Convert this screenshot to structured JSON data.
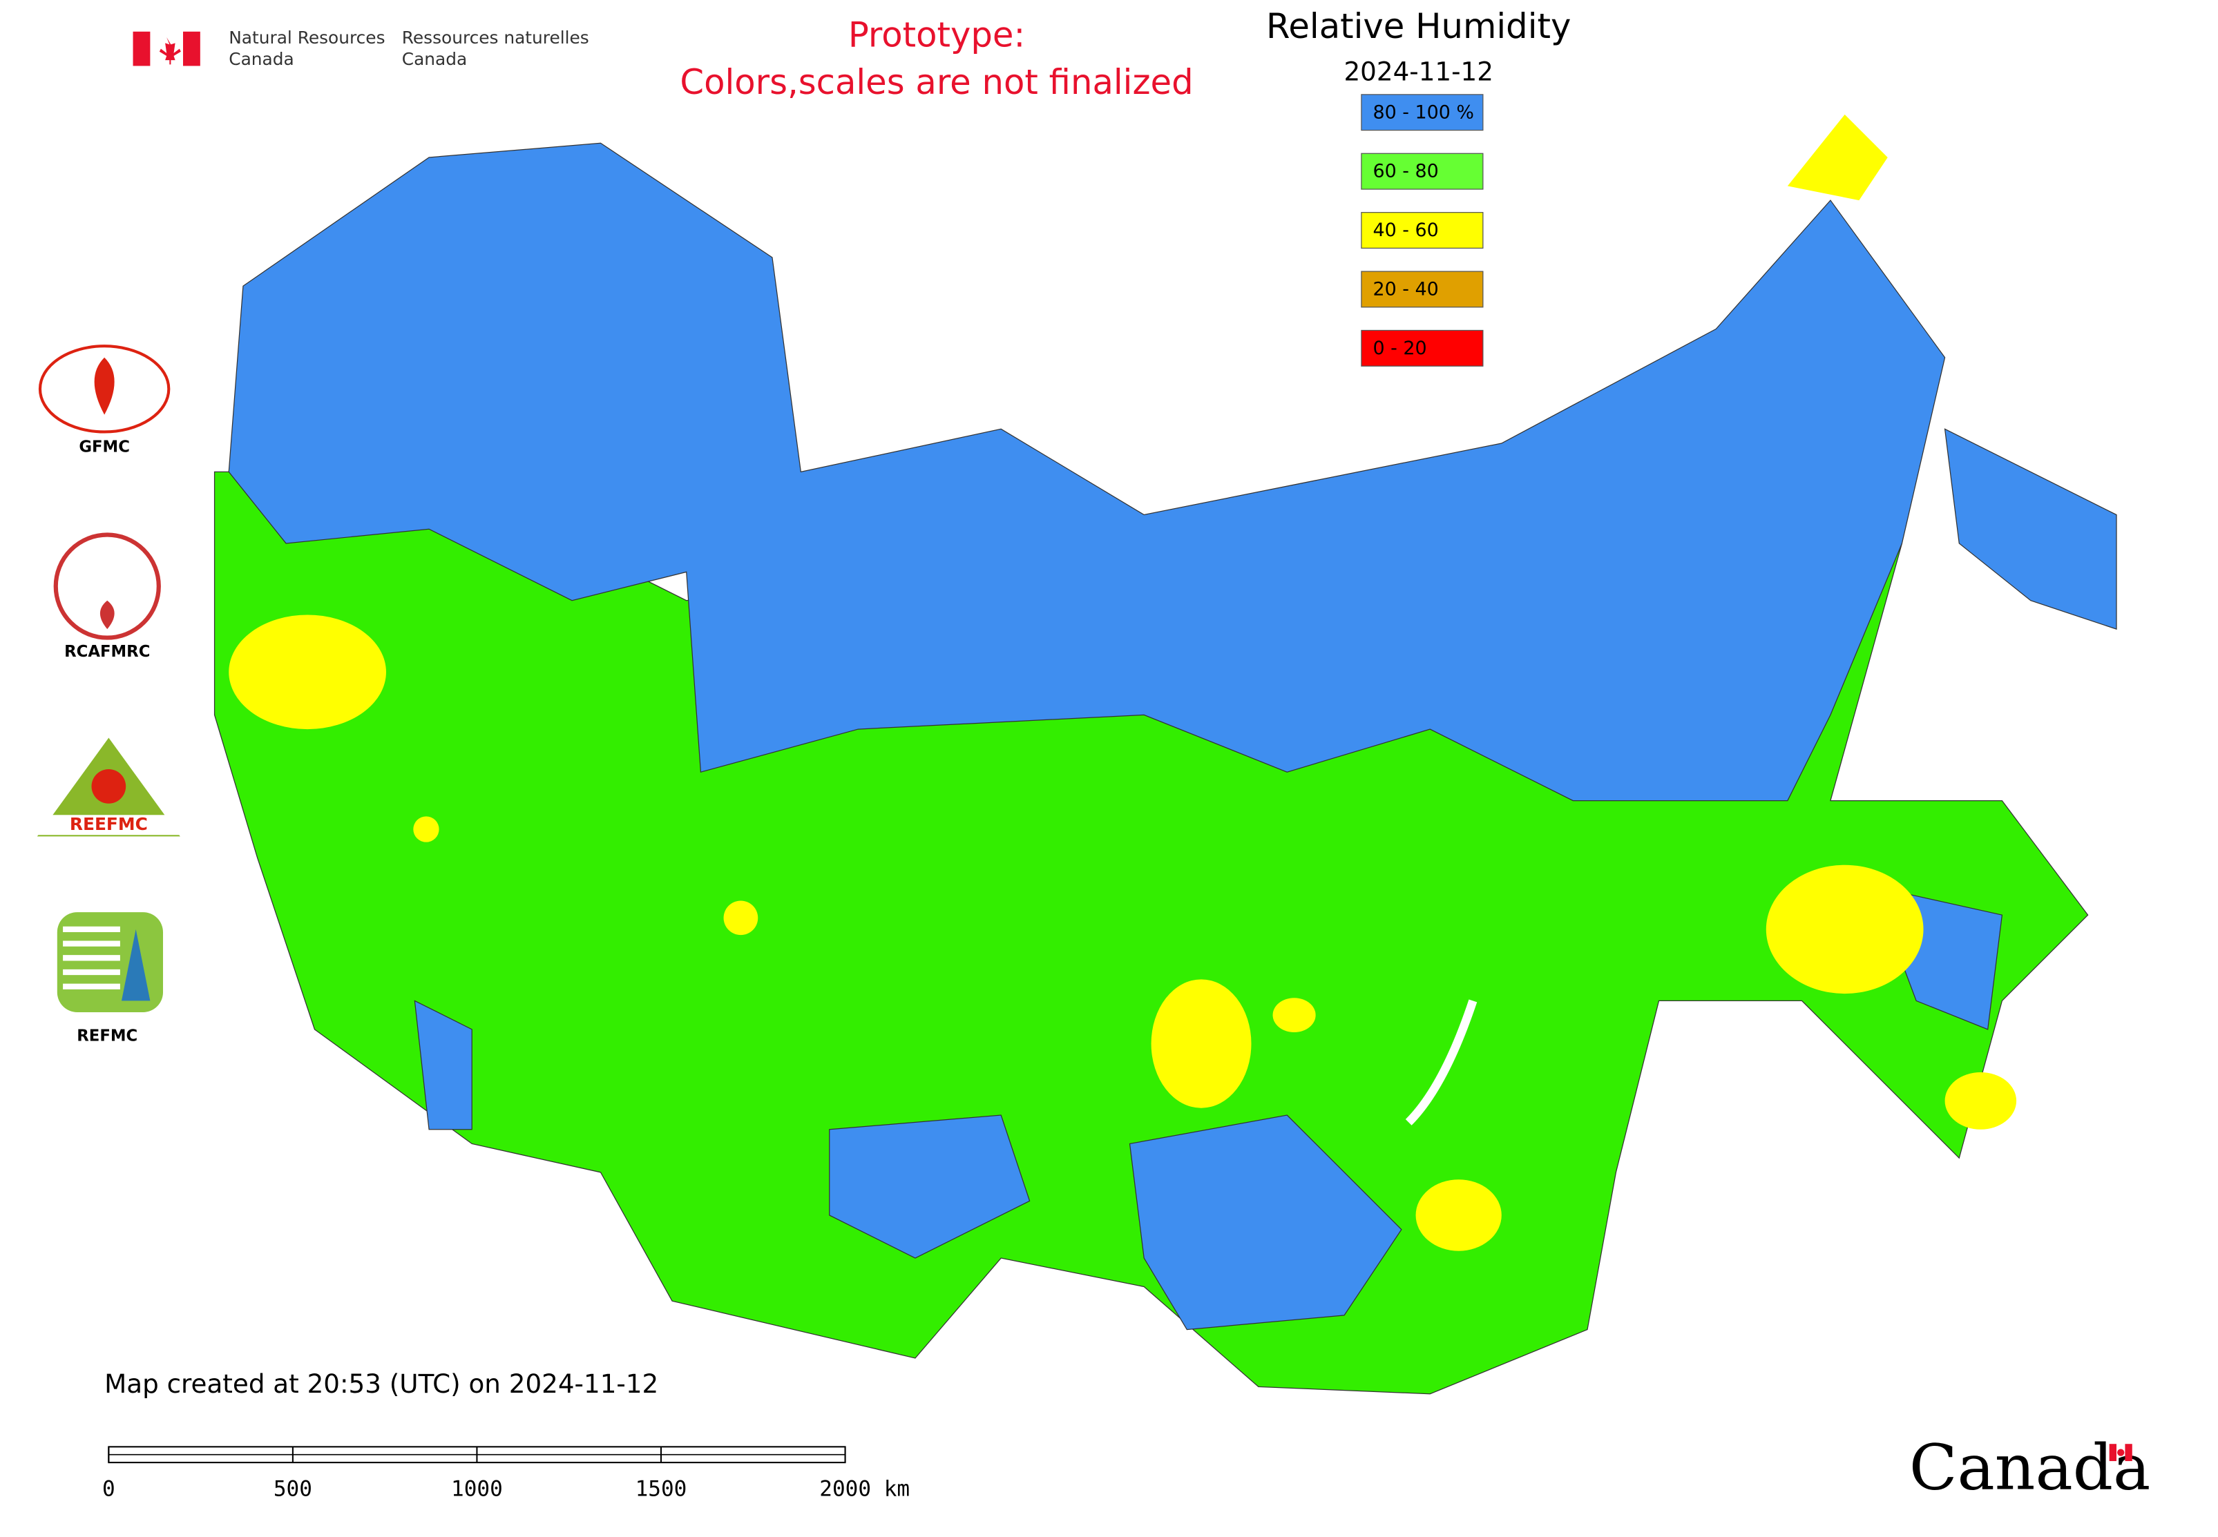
{
  "header": {
    "department_en": "Natural Resources",
    "country_en": "Canada",
    "department_fr": "Ressources naturelles",
    "country_fr": "Canada"
  },
  "notice": {
    "line1": "Prototype:",
    "line2": "Colors,scales are not finalized"
  },
  "title": "Relative Humidity",
  "date": "2024-11-12",
  "legend": [
    {
      "label": "80 - 100 %",
      "color": "#3f8ef0"
    },
    {
      "label": "60 - 80",
      "color": "#66ff33"
    },
    {
      "label": "40 - 60",
      "color": "#ffff00"
    },
    {
      "label": "20 - 40",
      "color": "#e0a000"
    },
    {
      "label": "0 - 20",
      "color": "#ff0000"
    }
  ],
  "logos": [
    {
      "label": "GFMC"
    },
    {
      "label": "RCAFMRC"
    },
    {
      "label": "REEFMC"
    },
    {
      "label": "REFMC"
    }
  ],
  "footer": {
    "created": "Map created at 20:53 (UTC) on 2024-11-12",
    "wordmark": "Canada"
  },
  "scale_bar": {
    "labels": [
      "0",
      "500",
      "1000",
      "1500",
      "2000 km"
    ]
  }
}
